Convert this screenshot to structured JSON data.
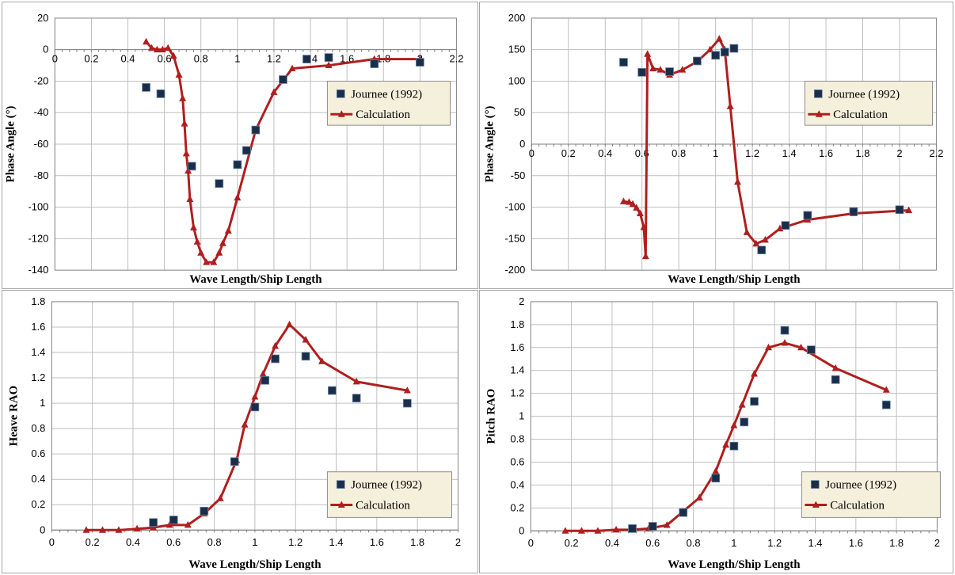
{
  "colors": {
    "calculation": "#b01e1e",
    "measured": "#1a2e4a",
    "grid": "#bfbfbf",
    "legend_bg": "#f5f0dc"
  },
  "chart_data": [
    {
      "type": "scatter",
      "ylabel": "Phase Angle (°)",
      "xlabel": "Wave Length/Ship Length",
      "xlim": [
        0,
        2.2
      ],
      "ylim": [
        -140,
        20
      ],
      "xticks": [
        0,
        0.2,
        0.4,
        0.6,
        0.8,
        1,
        1.2,
        1.4,
        1.6,
        1.8,
        2,
        2.2
      ],
      "yticks": [
        20,
        0,
        -20,
        -40,
        -60,
        -80,
        -100,
        -120,
        -140
      ],
      "x_tick_labels_at_zero": true,
      "legend_position": "center-right",
      "series": [
        {
          "name": "Journee (1992)",
          "kind": "markers",
          "x": [
            0.5,
            0.58,
            0.75,
            0.9,
            1.0,
            1.05,
            1.1,
            1.25,
            1.38,
            1.5,
            1.75,
            2.0
          ],
          "y": [
            -24,
            -28,
            -74,
            -85,
            -73,
            -64,
            -51,
            -19,
            -6,
            -5,
            -9,
            -8
          ]
        },
        {
          "name": "Calculation",
          "kind": "line",
          "x": [
            0.5,
            0.53,
            0.56,
            0.59,
            0.62,
            0.65,
            0.68,
            0.7,
            0.71,
            0.72,
            0.73,
            0.74,
            0.76,
            0.78,
            0.8,
            0.83,
            0.87,
            0.9,
            0.92,
            0.95,
            1.0,
            1.1,
            1.2,
            1.3,
            1.5,
            1.75,
            2.0
          ],
          "y": [
            5,
            1,
            0,
            0,
            1,
            -4,
            -16,
            -31,
            -47,
            -66,
            -77,
            -95,
            -113,
            -122,
            -129,
            -135,
            -135,
            -129,
            -123,
            -115,
            -94,
            -51,
            -27,
            -12,
            -10,
            -6,
            -6
          ]
        }
      ]
    },
    {
      "type": "scatter",
      "ylabel": "Phase Angle (°)",
      "xlabel": "Wave Length/Ship Length",
      "xlim": [
        0,
        2.2
      ],
      "ylim": [
        -200,
        200
      ],
      "xticks": [
        0,
        0.2,
        0.4,
        0.6,
        0.8,
        1,
        1.2,
        1.4,
        1.6,
        1.8,
        2,
        2.2
      ],
      "yticks": [
        200,
        150,
        100,
        50,
        0,
        -50,
        -100,
        -150,
        -200
      ],
      "x_tick_labels_at_zero": true,
      "legend_position": "center-right",
      "series": [
        {
          "name": "Journee (1992)",
          "kind": "markers",
          "x": [
            0.5,
            0.6,
            0.75,
            0.9,
            1.0,
            1.05,
            1.1,
            1.25,
            1.38,
            1.5,
            1.75,
            2.0
          ],
          "y": [
            130,
            114,
            115,
            132,
            141,
            146,
            152,
            -168,
            -129,
            -113,
            -107,
            -104
          ]
        },
        {
          "name": "Calculation",
          "kind": "line",
          "x": [
            0.5,
            0.53,
            0.55,
            0.57,
            0.59,
            0.61,
            0.62,
            0.63,
            0.66,
            0.7,
            0.75,
            0.82,
            0.9,
            0.97,
            1.02,
            1.05,
            1.08,
            1.12,
            1.17,
            1.22,
            1.27,
            1.35,
            1.5,
            1.75,
            2.05
          ],
          "y": [
            -91,
            -92,
            -95,
            -101,
            -110,
            -132,
            -178,
            143,
            120,
            118,
            110,
            118,
            131,
            150,
            167,
            150,
            60,
            -60,
            -140,
            -158,
            -152,
            -134,
            -120,
            -110,
            -105
          ]
        }
      ]
    },
    {
      "type": "scatter",
      "ylabel": "Heave RAO",
      "xlabel": "Wave Length/Ship Length",
      "xlim": [
        0,
        2
      ],
      "ylim": [
        0,
        1.8
      ],
      "xticks": [
        0,
        0.2,
        0.4,
        0.6,
        0.8,
        1,
        1.2,
        1.4,
        1.6,
        1.8,
        2
      ],
      "yticks": [
        1.8,
        1.6,
        1.4,
        1.2,
        1,
        0.8,
        0.6,
        0.4,
        0.2,
        0
      ],
      "legend_position": "bottom-right",
      "series": [
        {
          "name": "Journee (1992)",
          "kind": "markers",
          "x": [
            0.5,
            0.6,
            0.75,
            0.9,
            1.0,
            1.05,
            1.1,
            1.25,
            1.38,
            1.5,
            1.75
          ],
          "y": [
            0.06,
            0.08,
            0.15,
            0.54,
            0.97,
            1.18,
            1.35,
            1.37,
            1.1,
            1.04,
            1.0
          ]
        },
        {
          "name": "Calculation",
          "kind": "line",
          "x": [
            0.17,
            0.25,
            0.33,
            0.42,
            0.5,
            0.58,
            0.67,
            0.75,
            0.83,
            0.91,
            0.95,
            1.0,
            1.04,
            1.1,
            1.17,
            1.25,
            1.33,
            1.5,
            1.75
          ],
          "y": [
            0.0,
            0.0,
            0.0,
            0.01,
            0.02,
            0.04,
            0.04,
            0.13,
            0.25,
            0.55,
            0.83,
            1.05,
            1.23,
            1.45,
            1.62,
            1.5,
            1.33,
            1.17,
            1.1
          ]
        }
      ]
    },
    {
      "type": "scatter",
      "ylabel": "Pitch RAO",
      "xlabel": "Wave Length/Ship Length",
      "xlim": [
        0,
        2
      ],
      "ylim": [
        0,
        2
      ],
      "xticks": [
        0,
        0.2,
        0.4,
        0.6,
        0.8,
        1,
        1.2,
        1.4,
        1.6,
        1.8,
        2
      ],
      "yticks": [
        2,
        1.8,
        1.6,
        1.4,
        1.2,
        1,
        0.8,
        0.6,
        0.4,
        0.2,
        0
      ],
      "legend_position": "bottom-right",
      "series": [
        {
          "name": "Journee (1992)",
          "kind": "markers",
          "x": [
            0.5,
            0.6,
            0.75,
            0.91,
            1.0,
            1.05,
            1.1,
            1.25,
            1.38,
            1.5,
            1.75
          ],
          "y": [
            0.02,
            0.04,
            0.16,
            0.46,
            0.74,
            0.95,
            1.13,
            1.75,
            1.58,
            1.32,
            1.1
          ]
        },
        {
          "name": "Calculation",
          "kind": "line",
          "x": [
            0.17,
            0.25,
            0.33,
            0.42,
            0.5,
            0.58,
            0.67,
            0.75,
            0.83,
            0.91,
            0.96,
            1.0,
            1.04,
            1.1,
            1.17,
            1.25,
            1.33,
            1.5,
            1.75
          ],
          "y": [
            0.0,
            0.0,
            0.0,
            0.01,
            0.01,
            0.02,
            0.05,
            0.17,
            0.29,
            0.52,
            0.75,
            0.92,
            1.1,
            1.37,
            1.6,
            1.64,
            1.6,
            1.42,
            1.23
          ]
        }
      ]
    }
  ]
}
